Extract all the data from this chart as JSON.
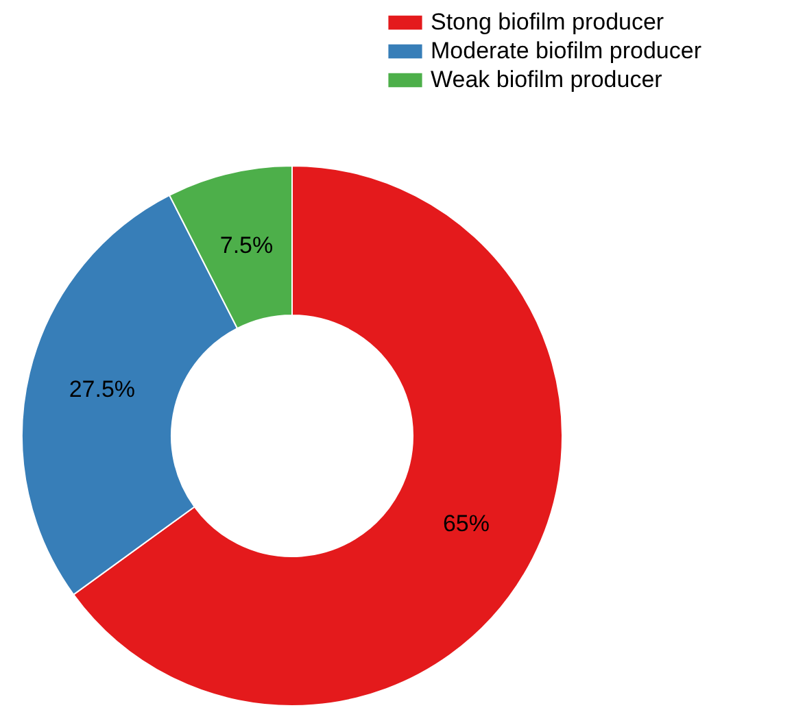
{
  "chart_data": {
    "type": "donut",
    "categories": [
      "Stong biofilm producer",
      "Moderate biofilm producer",
      "Weak biofilm producer"
    ],
    "values": [
      65,
      27.5,
      7.5
    ],
    "colors": [
      "#e41a1c",
      "#377eb8",
      "#4daf4a"
    ],
    "value_labels": [
      "65%",
      "27.5%",
      "7.5%"
    ],
    "legend": "top right"
  }
}
